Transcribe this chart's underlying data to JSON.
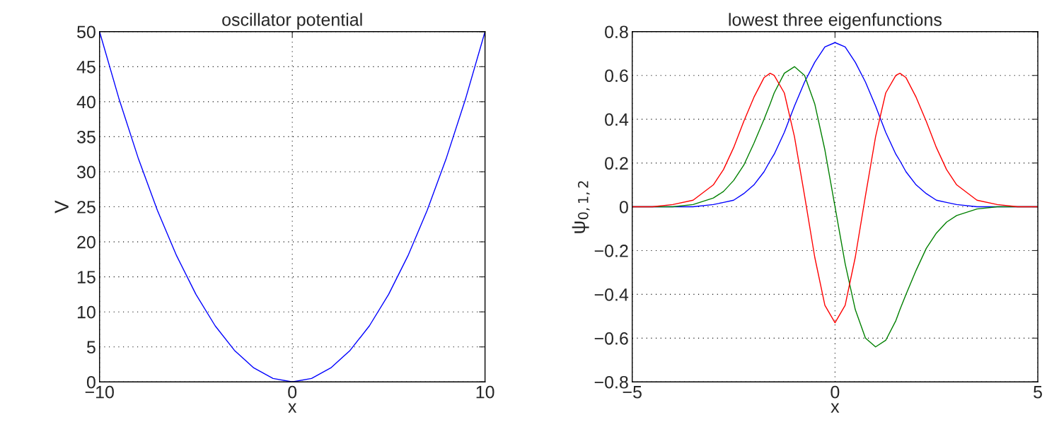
{
  "chart_data": [
    {
      "type": "line",
      "title": "oscillator potential",
      "xlabel": "x",
      "ylabel": "V",
      "x": [
        -10,
        -9,
        -8,
        -7,
        -6,
        -5,
        -4,
        -3,
        -2,
        -1,
        0,
        1,
        2,
        3,
        4,
        5,
        6,
        7,
        8,
        9,
        10
      ],
      "series": [
        {
          "color": "#0000ff",
          "values": [
            50,
            40.5,
            32,
            24.5,
            18,
            12.5,
            8,
            4.5,
            2,
            0.5,
            0,
            0.5,
            2,
            4.5,
            8,
            12.5,
            18,
            24.5,
            32,
            40.5,
            50
          ]
        }
      ],
      "xlim": [
        -10,
        10
      ],
      "xticks": [
        {
          "value": -10,
          "label": "−10"
        },
        0,
        10
      ],
      "ylim": [
        0,
        50
      ],
      "yticks": [
        0,
        5,
        10,
        15,
        20,
        25,
        30,
        35,
        40,
        45,
        50
      ],
      "grid": true,
      "marker": "none",
      "line_style": "solid",
      "legend": false
    },
    {
      "type": "line",
      "title": "lowest three eigenfunctions",
      "xlabel": "x",
      "ylabel": "ψ$_{0,1,2}$",
      "x": [
        -5,
        -4.5,
        -4,
        -3.5,
        -3,
        -2.75,
        -2.5,
        -2.25,
        -2,
        -1.75,
        -1.6,
        -1.5,
        -1.25,
        -1,
        -0.75,
        -0.5,
        -0.25,
        0,
        0.25,
        0.5,
        0.75,
        1,
        1.25,
        1.5,
        1.6,
        1.75,
        2,
        2.25,
        2.5,
        2.75,
        3,
        3.5,
        4,
        4.5,
        5
      ],
      "series": [
        {
          "color": "#0000ff",
          "values": [
            0,
            0,
            0,
            0,
            0.01,
            0.02,
            0.03,
            0.06,
            0.1,
            0.16,
            0.21,
            0.24,
            0.34,
            0.46,
            0.57,
            0.66,
            0.73,
            0.75,
            0.73,
            0.66,
            0.57,
            0.46,
            0.34,
            0.24,
            0.21,
            0.16,
            0.1,
            0.06,
            0.03,
            0.02,
            0.01,
            0,
            0,
            0,
            0
          ]
        },
        {
          "color": "#008000",
          "values": [
            0,
            0,
            0,
            0.01,
            0.04,
            0.07,
            0.12,
            0.19,
            0.29,
            0.4,
            0.47,
            0.52,
            0.61,
            0.64,
            0.6,
            0.47,
            0.26,
            0,
            -0.26,
            -0.47,
            -0.6,
            -0.64,
            -0.61,
            -0.52,
            -0.47,
            -0.4,
            -0.29,
            -0.19,
            -0.12,
            -0.07,
            -0.04,
            -0.01,
            0,
            0,
            0
          ]
        },
        {
          "color": "#ff0000",
          "values": [
            0,
            0,
            0.01,
            0.03,
            0.1,
            0.17,
            0.27,
            0.39,
            0.5,
            0.59,
            0.61,
            0.6,
            0.52,
            0.32,
            0.05,
            -0.23,
            -0.45,
            -0.53,
            -0.45,
            -0.23,
            0.05,
            0.32,
            0.52,
            0.6,
            0.61,
            0.59,
            0.5,
            0.39,
            0.27,
            0.17,
            0.1,
            0.03,
            0.01,
            0,
            0
          ]
        }
      ],
      "xlim": [
        -5,
        5
      ],
      "xticks": [
        {
          "value": -5,
          "label": "−5"
        },
        0,
        5
      ],
      "ylim": [
        -0.8,
        0.8
      ],
      "yticks": [
        {
          "value": -0.8,
          "label": "−0.8"
        },
        {
          "value": -0.6,
          "label": "−0.6"
        },
        {
          "value": -0.4,
          "label": "−0.4"
        },
        {
          "value": -0.2,
          "label": "−0.2"
        },
        0,
        0.2,
        0.4,
        0.6,
        0.8
      ],
      "grid": true,
      "marker": "none",
      "line_style": "solid",
      "legend": false
    }
  ]
}
